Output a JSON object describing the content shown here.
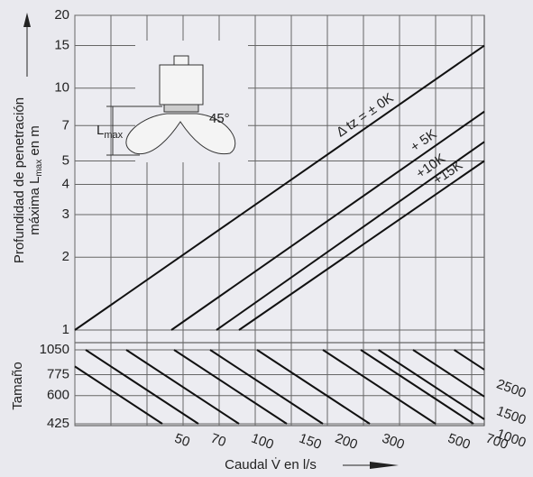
{
  "chart_data": [
    {
      "type": "line",
      "ylabel": "Profundidad de penetración",
      "ylabel2": [
        "máxima L",
        "max",
        " en m"
      ],
      "xlim": [
        0,
        11.35
      ],
      "xgrid": [
        0,
        1,
        2,
        3,
        4,
        5,
        6,
        7,
        8,
        9,
        10,
        11
      ],
      "ylim": [
        1,
        20
      ],
      "yticks": [
        1,
        2,
        3,
        4,
        5,
        7,
        10,
        15,
        20
      ],
      "log_y": true,
      "grid": true,
      "series": [
        {
          "name": "Δ tz = ± 0K",
          "color": "#111111",
          "x": [
            0,
            11.35
          ],
          "values": [
            1,
            15
          ]
        },
        {
          "name": "+ 5K",
          "color": "#111111",
          "x": [
            2.675,
            11.35
          ],
          "values": [
            1,
            8
          ]
        },
        {
          "name": "+10K",
          "color": "#111111",
          "x": [
            3.925,
            11.35
          ],
          "values": [
            1,
            6
          ]
        },
        {
          "name": "+15K",
          "color": "#111111",
          "x": [
            4.55,
            11.35
          ],
          "values": [
            1,
            5
          ]
        }
      ],
      "inset": {
        "lmax": "L",
        "lmax_sub": "max",
        "angle": "45°"
      }
    },
    {
      "type": "nomogram",
      "ylabel": "Tamaño",
      "xlabel": "Caudal V̇ en l/s",
      "ylim": [
        425,
        1050
      ],
      "yticks": [
        425,
        600,
        775,
        1050
      ],
      "log_y": true,
      "xlim": [
        0,
        11.35
      ],
      "shift": 3.125,
      "flows": [
        50,
        70,
        100,
        150,
        200,
        300,
        500,
        700,
        1000,
        1500,
        2500
      ],
      "x_bottom": [
        2.425,
        3.425,
        4.55,
        5.875,
        6.875,
        8.175,
        10.0,
        11.05,
        11.54,
        12.5,
        13.64
      ]
    }
  ]
}
